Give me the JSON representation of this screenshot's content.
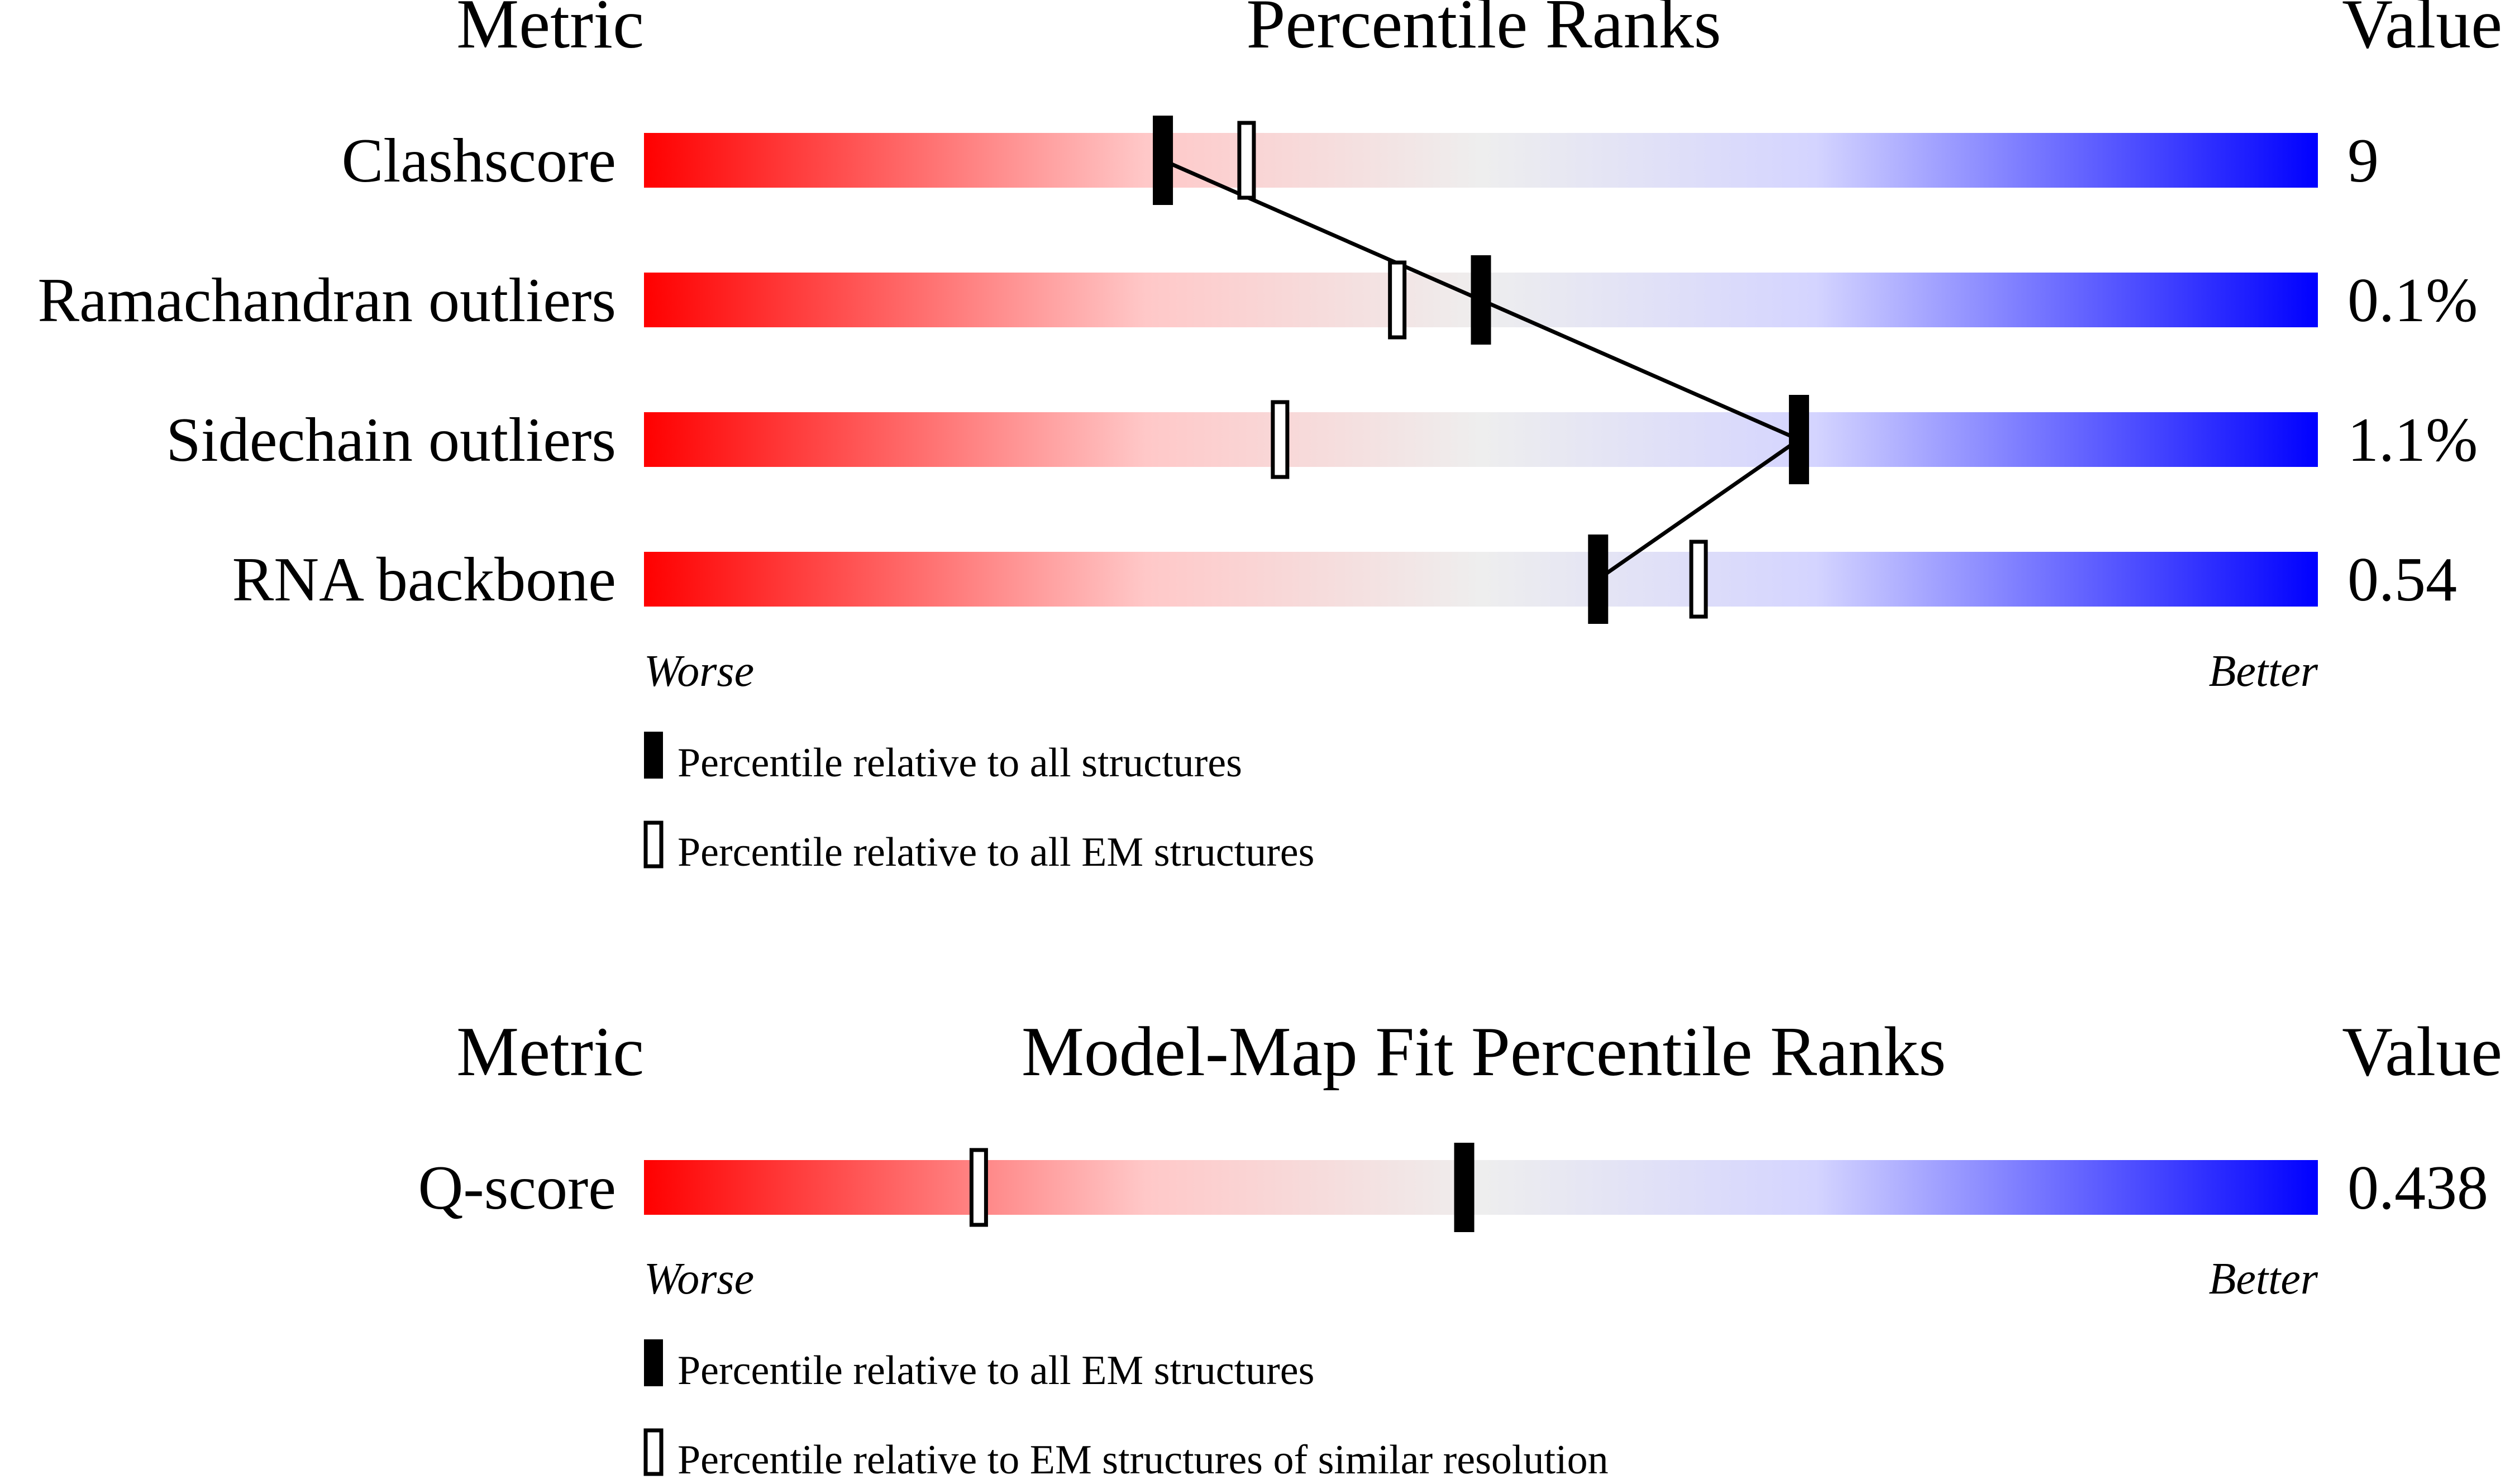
{
  "colors": {
    "worse": "#ff0000",
    "neutral": "#eeeeee",
    "better": "#0000ff",
    "mark": "#000000"
  },
  "chart_data": [
    {
      "type": "bar",
      "title": "Percentile Ranks",
      "metric_header": "Metric",
      "value_header": "Value",
      "axis": {
        "min": 0,
        "max": 100,
        "worse_label": "Worse",
        "better_label": "Better"
      },
      "rows": [
        {
          "metric": "Clashscore",
          "value": "9",
          "pct_all": 31,
          "pct_reference": 36
        },
        {
          "metric": "Ramachandran outliers",
          "value": "0.1%",
          "pct_all": 50,
          "pct_reference": 45
        },
        {
          "metric": "Sidechain outliers",
          "value": "1.1%",
          "pct_all": 69,
          "pct_reference": 38
        },
        {
          "metric": "RNA backbone",
          "value": "0.54",
          "pct_all": 57,
          "pct_reference": 63
        }
      ],
      "connect_filled_markers": true,
      "legend": [
        {
          "marker": "filled",
          "label": "Percentile relative to all structures"
        },
        {
          "marker": "open",
          "label": "Percentile relative to all EM structures"
        }
      ]
    },
    {
      "type": "bar",
      "title": "Model-Map Fit Percentile Ranks",
      "metric_header": "Metric",
      "value_header": "Value",
      "axis": {
        "min": 0,
        "max": 100,
        "worse_label": "Worse",
        "better_label": "Better"
      },
      "rows": [
        {
          "metric": "Q-score",
          "value": "0.438",
          "pct_all": 49,
          "pct_reference": 20
        }
      ],
      "connect_filled_markers": false,
      "legend": [
        {
          "marker": "filled",
          "label": "Percentile relative to all EM structures"
        },
        {
          "marker": "open",
          "label": "Percentile relative to EM structures of similar resolution"
        }
      ]
    }
  ]
}
